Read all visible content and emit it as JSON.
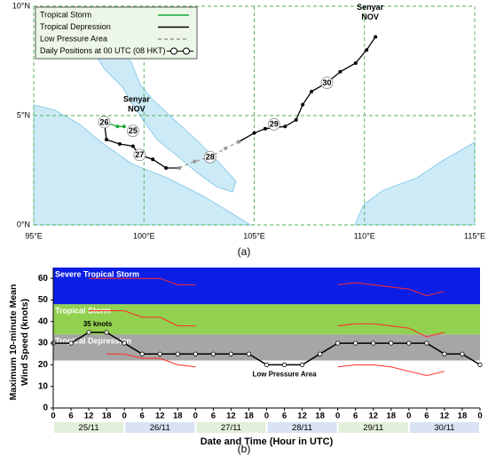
{
  "chart_data": [
    {
      "type": "track",
      "x": [
        99.1,
        98.8,
        98.2,
        98.3,
        98.9,
        99.5,
        99.8,
        100.4,
        101.0,
        101.6,
        102.3,
        103.0,
        103.7,
        104.3,
        105.0,
        105.5,
        106.4,
        106.9,
        107.2,
        107.6,
        108.3,
        108.9,
        109.6,
        110.1,
        110.5
      ],
      "series": [
        {
          "name": "Tropical Storm",
          "color": "#1aa83a",
          "values": [
            4.5,
            4.5,
            4.7,
            null,
            null,
            null,
            null,
            null,
            null,
            null,
            null,
            null,
            null,
            null,
            null,
            null,
            null,
            null,
            null,
            null,
            null,
            null,
            null,
            null,
            null
          ]
        },
        {
          "name": "Tropical Depression",
          "color": "#000000",
          "values": [
            null,
            null,
            4.7,
            3.9,
            3.7,
            3.6,
            3.2,
            3.0,
            2.6,
            2.6,
            null,
            null,
            null,
            3.8,
            4.2,
            4.4,
            4.5,
            4.8,
            5.5,
            6.1,
            6.5,
            7.0,
            7.4,
            8.0,
            8.6
          ]
        },
        {
          "name": "Low Pressure Area",
          "color": "#999999",
          "dashed": true,
          "values": [
            null,
            null,
            null,
            null,
            null,
            null,
            null,
            null,
            null,
            2.6,
            2.9,
            3.1,
            3.5,
            3.8,
            null,
            null,
            null,
            null,
            null,
            null,
            null,
            null,
            null,
            null,
            null
          ]
        }
      ],
      "marker_legend": "Daily Positions at 00 UTC (08 HKT)",
      "daily_positions": [
        {
          "label": "25",
          "x": 99.5,
          "y": 4.3
        },
        {
          "label": "26",
          "x": 98.2,
          "y": 4.7
        },
        {
          "label": "27",
          "x": 99.8,
          "y": 3.2
        },
        {
          "label": "28",
          "x": 103.0,
          "y": 3.1
        },
        {
          "label": "29",
          "x": 105.9,
          "y": 4.6
        },
        {
          "label": "30",
          "x": 108.3,
          "y": 6.5
        }
      ],
      "storm_name": [
        "Senyar",
        "NOV"
      ],
      "xlim": [
        95,
        115
      ],
      "xticks": [
        {
          "value": 95,
          "label": "95°E"
        },
        {
          "value": 100,
          "label": "100°E"
        },
        {
          "value": 105,
          "label": "105°E"
        },
        {
          "value": 110,
          "label": "110°E"
        },
        {
          "value": 115,
          "label": "115°E"
        }
      ],
      "ylim": [
        0,
        10
      ],
      "yticks": [
        {
          "value": 0,
          "label": "0°N"
        },
        {
          "value": 5,
          "label": "5°N"
        },
        {
          "value": 10,
          "label": "10°N"
        }
      ],
      "grid": true,
      "caption": "(a)"
    },
    {
      "type": "line",
      "x": [
        0,
        6,
        12,
        18,
        24,
        30,
        36,
        42,
        48,
        54,
        60,
        66,
        72,
        78,
        84,
        90,
        96,
        102,
        108,
        114,
        120,
        126,
        132,
        138,
        144
      ],
      "series": [
        {
          "color": "#000000",
          "markers": true,
          "values": [
            30,
            30,
            35,
            35,
            30,
            25,
            25,
            25,
            25,
            25,
            25,
            25,
            20,
            20,
            20,
            25,
            30,
            30,
            30,
            30,
            30,
            30,
            25,
            25,
            20
          ]
        },
        {
          "color": "#ff2a2a",
          "values": [
            null,
            null,
            60,
            60,
            60,
            60,
            60,
            57,
            57,
            null,
            null,
            null,
            null,
            null,
            null,
            null,
            57,
            58,
            57,
            56,
            55,
            52,
            54,
            null,
            null
          ]
        },
        {
          "color": "#ff2a2a",
          "values": [
            null,
            null,
            45,
            45,
            45,
            42,
            42,
            38,
            38,
            null,
            null,
            null,
            null,
            null,
            null,
            null,
            38,
            39,
            39,
            38,
            37,
            33,
            35,
            null,
            null
          ]
        },
        {
          "color": "#ff2a2a",
          "values": [
            null,
            null,
            null,
            25,
            25,
            23,
            23,
            20,
            19,
            null,
            null,
            null,
            null,
            null,
            null,
            null,
            19,
            20,
            20,
            19,
            17,
            15,
            17,
            null,
            null
          ]
        }
      ],
      "bands": [
        {
          "label": "Severe Tropical Storm",
          "from": 48,
          "to": 65,
          "color": "#0a1ee6"
        },
        {
          "label": "Tropical Storm",
          "from": 34,
          "to": 48,
          "color": "#92d050"
        },
        {
          "label": "Tropical Depression",
          "from": 22,
          "to": 34,
          "color": "#a6a6a6"
        }
      ],
      "annotations": [
        {
          "text": "35 knots",
          "x": 15,
          "y": 35
        },
        {
          "text": "Low Pressure Area",
          "x": 78,
          "y": 20
        }
      ],
      "xlim": [
        0,
        144
      ],
      "xticks": [
        0,
        6,
        12,
        18,
        {
          "value": 24,
          "label": "0"
        },
        {
          "value": 30,
          "label": "6"
        },
        {
          "value": 36,
          "label": "12"
        },
        {
          "value": 42,
          "label": "18"
        },
        {
          "value": 48,
          "label": "0"
        },
        {
          "value": 54,
          "label": "6"
        },
        {
          "value": 60,
          "label": "12"
        },
        {
          "value": 66,
          "label": "18"
        },
        {
          "value": 72,
          "label": "0"
        },
        {
          "value": 78,
          "label": "6"
        },
        {
          "value": 84,
          "label": "12"
        },
        {
          "value": 90,
          "label": "18"
        },
        {
          "value": 96,
          "label": "0"
        },
        {
          "value": 102,
          "label": "6"
        },
        {
          "value": 108,
          "label": "12"
        },
        {
          "value": 114,
          "label": "18"
        },
        {
          "value": 120,
          "label": "0"
        },
        {
          "value": 126,
          "label": "6"
        },
        {
          "value": 132,
          "label": "12"
        },
        {
          "value": 138,
          "label": "18"
        },
        {
          "value": 144,
          "label": "0"
        }
      ],
      "ylim": [
        0,
        65
      ],
      "yticks": [
        0,
        10,
        20,
        30,
        40,
        50,
        60
      ],
      "dates": [
        "25/11",
        "26/11",
        "27/11",
        "28/11",
        "29/11",
        "30/11"
      ],
      "xlabel": "Date and Time (Hour in UTC)",
      "ylabel": [
        "Maximum 10-minute Mean",
        "Wind Speed (knots)"
      ],
      "caption": "(b)"
    }
  ]
}
